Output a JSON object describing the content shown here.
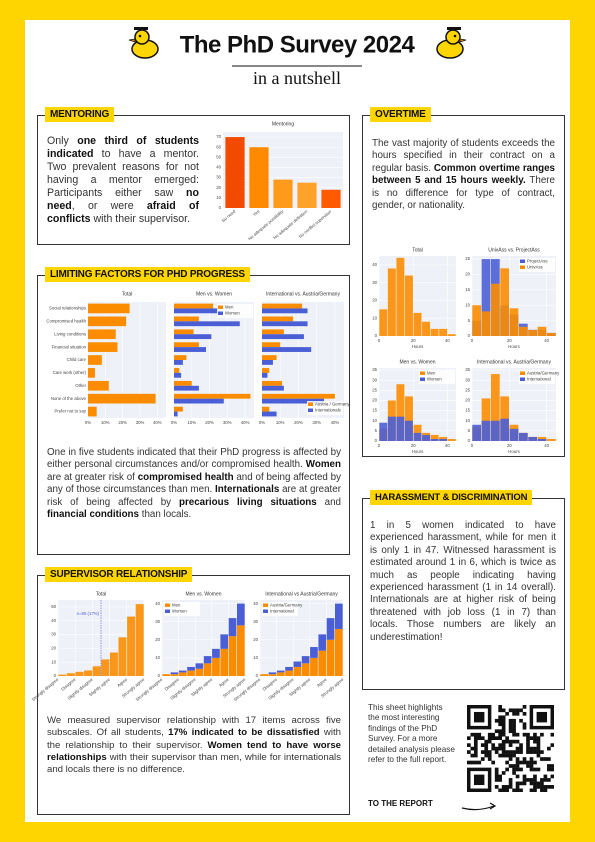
{
  "header": {
    "title": "The PhD Survey 2024",
    "subtitle": "in a nutshell"
  },
  "sections": {
    "mentoring": {
      "label": "MENTORING",
      "text": [
        "Only ",
        "one third of students indicated",
        " to have a mentor. Two prevalent reasons for not having a mentor emerged: Participants either saw ",
        "no need",
        ", or were ",
        "afraid of conflicts",
        " with their supervisor."
      ]
    },
    "overtime": {
      "label": "OVERTIME",
      "text": [
        "The vast majority of students exceeds the hours specified in their contract on a regular basis. ",
        "Common overtime ranges between 5 and 15 hours weekly.",
        " There is no difference for type of contract, gender, or nationality."
      ]
    },
    "limiting": {
      "label": "LIMITING FACTORS FOR PHD PROGRESS",
      "text": [
        "One in five students indicated that their PhD progress is affected by either personal circumstances and/or compromised health. ",
        "Women",
        " are at greater risk of ",
        "compromised health",
        " and of being affected by any of those circumstances than men. ",
        "Internationals",
        " are at greater risk of being affected by ",
        "precarious living situations",
        " and ",
        "financial conditions",
        " than locals."
      ]
    },
    "supervisor": {
      "label": "SUPERVISOR RELATIONSHIP",
      "text": [
        "We measured supervisor relationship with 17 items across five subscales. Of all students, ",
        "17% indicated to be dissatisfied",
        " with the relationship to their supervisor. ",
        "Women tend to have worse relationships",
        " with their supervisor than men, while for internationals and locals there is no difference."
      ]
    },
    "harassment": {
      "label": "HARASSMENT & DISCRIMINATION",
      "text": [
        "1 in 5 women indicated to have experienced harassment, while for men it is only 1 in 47. Witnessed harassment is estimated around 1 in 6, which is twice as much as people indicating having experienced harassment (1 in 14 overall). Internationals are at higher risk of being threatened with job loss (1 in 7) than locals. Those numbers are likely an underestimation!"
      ]
    }
  },
  "footer": {
    "note": "This sheet highlights the most interesting findings of the PhD Survey. For a more detailed analysis please refer to the full report.",
    "link": "TO THE REPORT"
  },
  "chart_data": [
    {
      "type": "bar",
      "title": "Mentoring",
      "categories": [
        "No need",
        "Yes",
        "No adequate possibility",
        "No adequate definition",
        "No conflict supervisor"
      ],
      "values": [
        70,
        60,
        28,
        25,
        18
      ],
      "colors": [
        "#f24b00",
        "#ff8a00",
        "#ff9a1a",
        "#ffa22a",
        "#ff5a00"
      ],
      "ylim": [
        0,
        75
      ],
      "yticks": [
        0,
        10,
        20,
        30,
        40,
        50,
        60,
        70
      ],
      "grid": true
    },
    {
      "type": "barh",
      "title": "Total",
      "categories": [
        "Social relationships",
        "Compromised health",
        "Living conditions",
        "Financial situation",
        "Child care",
        "Care work (other)",
        "Other",
        "None of the above",
        "Prefer not to say"
      ],
      "values": [
        24,
        22,
        16,
        17,
        8,
        4,
        12,
        39,
        5
      ],
      "color": "#fb8c00",
      "xlim": [
        0,
        45
      ],
      "xticks": [
        {
          "value": 0,
          "label": "0%"
        },
        {
          "value": 10,
          "label": "10%"
        },
        {
          "value": 20,
          "label": "20%"
        },
        {
          "value": 30,
          "label": "30%"
        },
        {
          "value": 40,
          "label": "40%"
        }
      ],
      "grid": true
    },
    {
      "type": "barh",
      "title": "Men vs. Women",
      "series": [
        {
          "name": "Men",
          "color": "#fb8c00",
          "values": [
            22,
            14,
            11,
            14,
            7,
            3,
            10,
            43,
            5
          ]
        },
        {
          "name": "Women",
          "color": "#4a5fd6",
          "values": [
            25,
            37,
            21,
            18,
            5,
            4,
            14,
            28,
            2
          ]
        }
      ],
      "xlim": [
        0,
        45
      ],
      "xticks": [
        {
          "value": 0,
          "label": "0%"
        },
        {
          "value": 10,
          "label": "10%"
        },
        {
          "value": 20,
          "label": "20%"
        },
        {
          "value": 30,
          "label": "30%"
        },
        {
          "value": 40,
          "label": "40%"
        }
      ],
      "grid": true,
      "legend": "top-right"
    },
    {
      "type": "barh",
      "title": "International vs. Austria/Germany",
      "series": [
        {
          "name": "Austria / Germany",
          "color": "#fb8c00",
          "values": [
            22,
            17,
            12,
            10,
            8,
            4,
            11,
            40,
            4
          ]
        },
        {
          "name": "Internationals",
          "color": "#4a5fd6",
          "values": [
            25,
            25,
            23,
            27,
            6,
            3,
            12,
            34,
            8
          ]
        }
      ],
      "xlim": [
        0,
        45
      ],
      "xticks": [
        {
          "value": 0,
          "label": "0%"
        },
        {
          "value": 10,
          "label": "10%"
        },
        {
          "value": 20,
          "label": "20%"
        },
        {
          "value": 30,
          "label": "30%"
        },
        {
          "value": 40,
          "label": "40%"
        }
      ],
      "grid": true,
      "legend": "bottom-right"
    },
    {
      "type": "histogram",
      "title": "Total",
      "xlabel": "Hours",
      "bins": [
        0,
        5,
        10,
        15,
        20,
        25,
        30,
        35,
        40,
        45
      ],
      "values": [
        15,
        38,
        44,
        34,
        13,
        8,
        4,
        4,
        1
      ],
      "color": "#fb8c00",
      "xlim": [
        0,
        45
      ],
      "xticks": [
        0,
        20,
        40
      ],
      "ylim": [
        0,
        45
      ],
      "yticks": [
        0,
        10,
        20,
        30,
        40
      ],
      "grid": true
    },
    {
      "type": "histogram",
      "title": "UnivAss vs. ProjectAss",
      "xlabel": "Hours",
      "bins": [
        0,
        5,
        10,
        15,
        20,
        25,
        30,
        35,
        40,
        45
      ],
      "series": [
        {
          "name": "ProjectAss",
          "color": "#4a5fd6",
          "values": [
            5,
            25,
            25,
            10,
            7,
            4,
            2,
            2,
            1
          ]
        },
        {
          "name": "UnivAss",
          "color": "#fb8c00",
          "values": [
            10,
            8,
            17,
            22,
            9,
            3,
            2,
            3,
            1
          ]
        }
      ],
      "xlim": [
        0,
        45
      ],
      "xticks": [
        0,
        20,
        40
      ],
      "ylim": [
        0,
        26
      ],
      "yticks": [
        0,
        5,
        10,
        15,
        20,
        25
      ],
      "grid": true,
      "legend": "top-right",
      "barmode": "overlay"
    },
    {
      "type": "histogram",
      "title": "Men vs. Women",
      "xlabel": "Hours",
      "bins": [
        0,
        5,
        10,
        15,
        20,
        25,
        30,
        35,
        40,
        45
      ],
      "series": [
        {
          "name": "Men",
          "color": "#fb8c00",
          "values": [
            6,
            20,
            28,
            22,
            8,
            4,
            3,
            2,
            1
          ]
        },
        {
          "name": "Women",
          "color": "#4a5fd6",
          "values": [
            9,
            12,
            12,
            10,
            4,
            3,
            1,
            1,
            0
          ]
        }
      ],
      "xlim": [
        0,
        45
      ],
      "xticks": [
        0,
        20,
        40
      ],
      "ylim": [
        0,
        36
      ],
      "yticks": [
        0,
        5,
        10,
        15,
        20,
        25,
        30,
        35
      ],
      "grid": true,
      "legend": "top-right",
      "barmode": "overlay"
    },
    {
      "type": "histogram",
      "title": "International vs. Austria/Germany",
      "xlabel": "Hours",
      "bins": [
        0,
        5,
        10,
        15,
        20,
        25,
        30,
        35,
        40,
        45
      ],
      "series": [
        {
          "name": "Austria/Germany",
          "color": "#fb8c00",
          "values": [
            7,
            21,
            33,
            22,
            8,
            4,
            2,
            2,
            1
          ]
        },
        {
          "name": "International",
          "color": "#4a5fd6",
          "values": [
            8,
            10,
            10,
            11,
            6,
            4,
            2,
            1,
            0
          ]
        }
      ],
      "xlim": [
        0,
        45
      ],
      "xticks": [
        0,
        20,
        40
      ],
      "ylim": [
        0,
        36
      ],
      "yticks": [
        0,
        5,
        10,
        15,
        20,
        25,
        30,
        35
      ],
      "grid": true,
      "legend": "top-right",
      "barmode": "overlay"
    },
    {
      "type": "histogram",
      "title": "Total",
      "bins": [
        1,
        1.5,
        2,
        2.5,
        3,
        3.5,
        4,
        4.5,
        5,
        5.5,
        6
      ],
      "values": [
        1,
        2,
        3,
        4,
        7,
        12,
        17,
        28,
        43,
        52
      ],
      "color": "#fb8c00",
      "xlim": [
        1,
        6
      ],
      "xticks": [
        {
          "value": 1,
          "label": "Strongly disagree"
        },
        {
          "value": 2,
          "label": "Disagree"
        },
        {
          "value": 3,
          "label": "Slightly disagree"
        },
        {
          "value": 4,
          "label": "Slightly agree"
        },
        {
          "value": 5,
          "label": "Agree"
        },
        {
          "value": 6,
          "label": "Strongly agree"
        }
      ],
      "ylim": [
        0,
        55
      ],
      "yticks": [
        0,
        10,
        20,
        30,
        40,
        50
      ],
      "grid": true,
      "annotation": {
        "x": 3.5,
        "text": "n=95 (17%)"
      }
    },
    {
      "type": "histogram",
      "title": "Men vs. Women",
      "bins": [
        1,
        1.5,
        2,
        2.5,
        3,
        3.5,
        4,
        4.5,
        5,
        5.5,
        6
      ],
      "series": [
        {
          "name": "Men",
          "color": "#fb8c00",
          "values": [
            1,
            1,
            2,
            3,
            4,
            7,
            10,
            15,
            22,
            28
          ]
        },
        {
          "name": "Women",
          "color": "#4a5fd6",
          "values": [
            0,
            1,
            1,
            2,
            3,
            4,
            5,
            8,
            10,
            12
          ]
        }
      ],
      "xlim": [
        1,
        6
      ],
      "xticks": [
        {
          "value": 1,
          "label": "Strongly disagree"
        },
        {
          "value": 2,
          "label": "Disagree"
        },
        {
          "value": 3,
          "label": "Slightly disagree"
        },
        {
          "value": 4,
          "label": "Slightly agree"
        },
        {
          "value": 5,
          "label": "Agree"
        },
        {
          "value": 6,
          "label": "Strongly agree"
        }
      ],
      "ylim": [
        0,
        42
      ],
      "yticks": [
        0,
        10,
        20,
        30,
        40
      ],
      "grid": true,
      "legend": "top-left",
      "barmode": "stack"
    },
    {
      "type": "histogram",
      "title": "International vs Austria/Germany",
      "bins": [
        1,
        1.5,
        2,
        2.5,
        3,
        3.5,
        4,
        4.5,
        5,
        5.5,
        6
      ],
      "series": [
        {
          "name": "Austria/Germany",
          "color": "#fb8c00",
          "values": [
            1,
            1,
            2,
            3,
            5,
            7,
            10,
            14,
            20,
            26
          ]
        },
        {
          "name": "International",
          "color": "#4a5fd6",
          "values": [
            0,
            1,
            1,
            2,
            3,
            4,
            6,
            9,
            12,
            14
          ]
        }
      ],
      "xlim": [
        1,
        6
      ],
      "xticks": [
        {
          "value": 1,
          "label": "Strongly disagree"
        },
        {
          "value": 2,
          "label": "Disagree"
        },
        {
          "value": 3,
          "label": "Slightly disagree"
        },
        {
          "value": 4,
          "label": "Slightly agree"
        },
        {
          "value": 5,
          "label": "Agree"
        },
        {
          "value": 6,
          "label": "Strongly agree"
        }
      ],
      "ylim": [
        0,
        42
      ],
      "yticks": [
        0,
        10,
        20,
        30,
        40
      ],
      "grid": true,
      "legend": "top-left",
      "barmode": "stack"
    }
  ]
}
